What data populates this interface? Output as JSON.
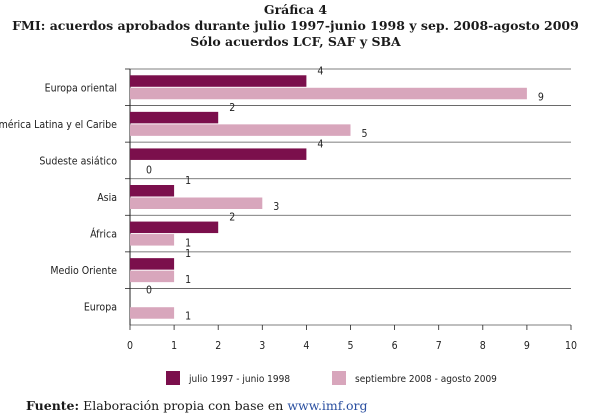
{
  "header": {
    "figure_label": "Gráfica 4",
    "title": "FMI: acuerdos aprobados durante julio 1997-junio 1998 y sep. 2008-agosto 2009",
    "subtitle": "Sólo acuerdos LCF, SAF y SBA"
  },
  "source": {
    "label": "Fuente:",
    "text": "Elaboración propia con base en",
    "link": "www.imf.org"
  },
  "colors": {
    "series1": "#7b0f4c",
    "series2": "#d8a6bc",
    "grid": "#555555",
    "axis": "#222222"
  },
  "chart_data": {
    "type": "bar",
    "orientation": "horizontal",
    "categories": [
      "Europa oriental",
      "América Latina y el Caribe",
      "Sudeste asiático",
      "Asia",
      "África",
      "Medio Oriente",
      "Europa"
    ],
    "series": [
      {
        "name": "julio 1997 - junio 1998",
        "values": [
          4,
          2,
          4,
          1,
          2,
          1,
          0
        ]
      },
      {
        "name": "septiembre 2008 - agosto 2009",
        "values": [
          9,
          5,
          0,
          3,
          1,
          1,
          1
        ]
      }
    ],
    "xlim": [
      0,
      10
    ],
    "xticks": [
      0,
      1,
      2,
      3,
      4,
      5,
      6,
      7,
      8,
      9,
      10
    ],
    "grid": true,
    "data_labels": true,
    "legend_position": "bottom",
    "title": "FMI: acuerdos aprobados durante julio 1997-junio 1998 y sep. 2008-agosto 2009",
    "xlabel": "",
    "ylabel": ""
  }
}
